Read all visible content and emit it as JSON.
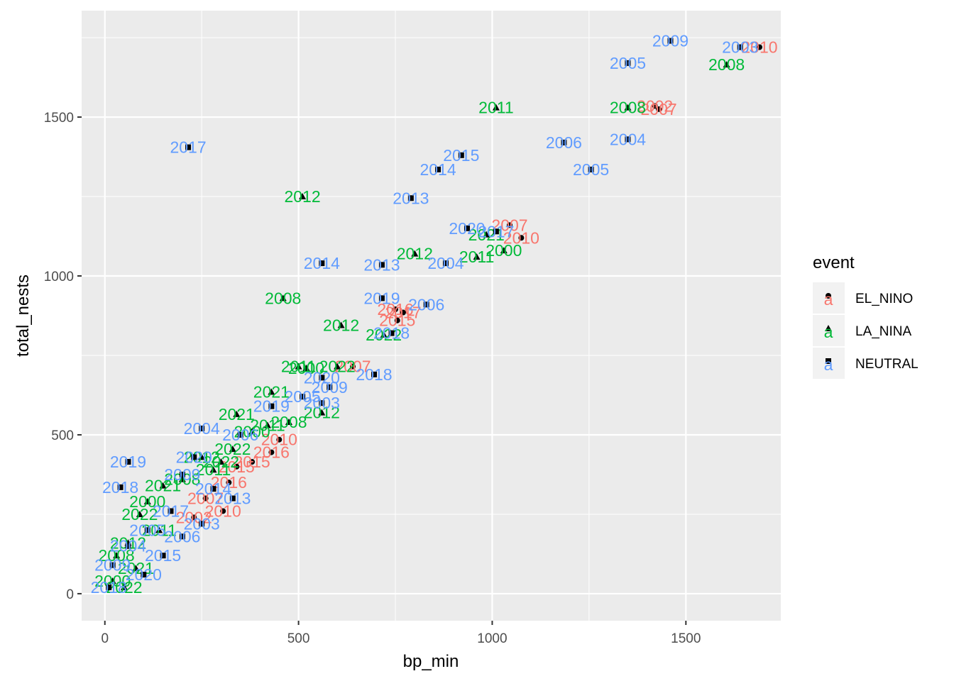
{
  "chart_data": {
    "type": "scatter",
    "title": "",
    "xlabel": "bp_min",
    "ylabel": "total_nests",
    "xlim": [
      -60,
      1745
    ],
    "ylim": [
      -85,
      1835
    ],
    "x_ticks": [
      0,
      500,
      1000,
      1500
    ],
    "y_ticks": [
      0,
      500,
      1000,
      1500
    ],
    "x_tick_labels": [
      "0",
      "500",
      "1000",
      "1500"
    ],
    "y_tick_labels": [
      "0",
      "500",
      "1000",
      "1500"
    ],
    "grid": true,
    "legend": {
      "title": "event",
      "position": "right",
      "entries": [
        {
          "name": "EL_NINO",
          "color": "#F8766D",
          "glyph": "a"
        },
        {
          "name": "LA_NINA",
          "color": "#00BA38",
          "glyph": "a"
        },
        {
          "name": "NEUTRAL",
          "color": "#619CFF",
          "glyph": "a"
        }
      ]
    },
    "colors": {
      "EL_NINO": "#F8766D",
      "LA_NINA": "#00BA38",
      "NEUTRAL": "#619CFF"
    },
    "series": [
      {
        "name": "EL_NINO",
        "points": [
          {
            "x": 1690,
            "y": 1720,
            "label": "2010"
          },
          {
            "x": 1420,
            "y": 1535,
            "label": "2002"
          },
          {
            "x": 1430,
            "y": 1525,
            "label": "2007"
          },
          {
            "x": 1045,
            "y": 1160,
            "label": "2007"
          },
          {
            "x": 1075,
            "y": 1120,
            "label": "2010"
          },
          {
            "x": 750,
            "y": 895,
            "label": "2016"
          },
          {
            "x": 770,
            "y": 885,
            "label": "2017"
          },
          {
            "x": 755,
            "y": 860,
            "label": "2015"
          },
          {
            "x": 640,
            "y": 715,
            "label": "2007"
          },
          {
            "x": 450,
            "y": 485,
            "label": "2010"
          },
          {
            "x": 430,
            "y": 445,
            "label": "2016"
          },
          {
            "x": 380,
            "y": 415,
            "label": "2015"
          },
          {
            "x": 340,
            "y": 400,
            "label": "2015"
          },
          {
            "x": 320,
            "y": 350,
            "label": "2016"
          },
          {
            "x": 305,
            "y": 260,
            "label": "2010"
          },
          {
            "x": 260,
            "y": 300,
            "label": "2007"
          },
          {
            "x": 230,
            "y": 240,
            "label": "2002"
          }
        ]
      },
      {
        "name": "LA_NINA",
        "points": [
          {
            "x": 1605,
            "y": 1665,
            "label": "2008"
          },
          {
            "x": 1350,
            "y": 1530,
            "label": "2008"
          },
          {
            "x": 1010,
            "y": 1530,
            "label": "2011"
          },
          {
            "x": 510,
            "y": 1250,
            "label": "2012"
          },
          {
            "x": 985,
            "y": 1130,
            "label": "2021"
          },
          {
            "x": 800,
            "y": 1070,
            "label": "2012"
          },
          {
            "x": 1030,
            "y": 1080,
            "label": "2000"
          },
          {
            "x": 960,
            "y": 1060,
            "label": "2011"
          },
          {
            "x": 460,
            "y": 930,
            "label": "2008"
          },
          {
            "x": 610,
            "y": 845,
            "label": "2012"
          },
          {
            "x": 720,
            "y": 815,
            "label": "2022"
          },
          {
            "x": 500,
            "y": 715,
            "label": "2011"
          },
          {
            "x": 520,
            "y": 710,
            "label": "2000"
          },
          {
            "x": 600,
            "y": 715,
            "label": "2022"
          },
          {
            "x": 430,
            "y": 635,
            "label": "2021"
          },
          {
            "x": 560,
            "y": 570,
            "label": "2012"
          },
          {
            "x": 340,
            "y": 565,
            "label": "2021"
          },
          {
            "x": 475,
            "y": 540,
            "label": "2008"
          },
          {
            "x": 420,
            "y": 530,
            "label": "2011"
          },
          {
            "x": 380,
            "y": 510,
            "label": "2000"
          },
          {
            "x": 300,
            "y": 415,
            "label": "2022"
          },
          {
            "x": 330,
            "y": 455,
            "label": "2022"
          },
          {
            "x": 280,
            "y": 390,
            "label": "2011"
          },
          {
            "x": 250,
            "y": 430,
            "label": "2012"
          },
          {
            "x": 200,
            "y": 360,
            "label": "2008"
          },
          {
            "x": 150,
            "y": 340,
            "label": "2021"
          },
          {
            "x": 110,
            "y": 290,
            "label": "2000"
          },
          {
            "x": 90,
            "y": 250,
            "label": "2022"
          },
          {
            "x": 60,
            "y": 160,
            "label": "2012"
          },
          {
            "x": 140,
            "y": 200,
            "label": "2011"
          },
          {
            "x": 30,
            "y": 120,
            "label": "2008"
          },
          {
            "x": 80,
            "y": 80,
            "label": "2021"
          },
          {
            "x": 20,
            "y": 40,
            "label": "2000"
          },
          {
            "x": 50,
            "y": 20,
            "label": "2022"
          }
        ]
      },
      {
        "name": "NEUTRAL",
        "points": [
          {
            "x": 1460,
            "y": 1740,
            "label": "2009"
          },
          {
            "x": 1640,
            "y": 1720,
            "label": "2003"
          },
          {
            "x": 1350,
            "y": 1670,
            "label": "2005"
          },
          {
            "x": 1350,
            "y": 1430,
            "label": "2004"
          },
          {
            "x": 1185,
            "y": 1420,
            "label": "2006"
          },
          {
            "x": 1255,
            "y": 1335,
            "label": "2005"
          },
          {
            "x": 920,
            "y": 1380,
            "label": "2015"
          },
          {
            "x": 860,
            "y": 1335,
            "label": "2014"
          },
          {
            "x": 790,
            "y": 1245,
            "label": "2013"
          },
          {
            "x": 215,
            "y": 1405,
            "label": "2017"
          },
          {
            "x": 935,
            "y": 1150,
            "label": "2020"
          },
          {
            "x": 1010,
            "y": 1140,
            "label": "2017"
          },
          {
            "x": 560,
            "y": 1040,
            "label": "2014"
          },
          {
            "x": 715,
            "y": 1035,
            "label": "2013"
          },
          {
            "x": 880,
            "y": 1040,
            "label": "2004"
          },
          {
            "x": 715,
            "y": 930,
            "label": "2019"
          },
          {
            "x": 830,
            "y": 910,
            "label": "2006"
          },
          {
            "x": 740,
            "y": 820,
            "label": "2018"
          },
          {
            "x": 695,
            "y": 690,
            "label": "2018"
          },
          {
            "x": 560,
            "y": 680,
            "label": "2020"
          },
          {
            "x": 580,
            "y": 650,
            "label": "2009"
          },
          {
            "x": 560,
            "y": 600,
            "label": "2003"
          },
          {
            "x": 510,
            "y": 620,
            "label": "2005"
          },
          {
            "x": 430,
            "y": 590,
            "label": "2019"
          },
          {
            "x": 250,
            "y": 520,
            "label": "2004"
          },
          {
            "x": 350,
            "y": 500,
            "label": "2006"
          },
          {
            "x": 230,
            "y": 430,
            "label": "2020"
          },
          {
            "x": 60,
            "y": 415,
            "label": "2019"
          },
          {
            "x": 200,
            "y": 375,
            "label": "2009"
          },
          {
            "x": 40,
            "y": 335,
            "label": "2018"
          },
          {
            "x": 280,
            "y": 330,
            "label": "2014"
          },
          {
            "x": 330,
            "y": 300,
            "label": "2013"
          },
          {
            "x": 170,
            "y": 260,
            "label": "2017"
          },
          {
            "x": 250,
            "y": 220,
            "label": "2003"
          },
          {
            "x": 110,
            "y": 200,
            "label": "2005"
          },
          {
            "x": 200,
            "y": 180,
            "label": "2006"
          },
          {
            "x": 60,
            "y": 150,
            "label": "2004"
          },
          {
            "x": 150,
            "y": 120,
            "label": "2015"
          },
          {
            "x": 20,
            "y": 90,
            "label": "2009"
          },
          {
            "x": 100,
            "y": 60,
            "label": "2020"
          },
          {
            "x": 10,
            "y": 20,
            "label": "2018"
          }
        ]
      }
    ]
  }
}
